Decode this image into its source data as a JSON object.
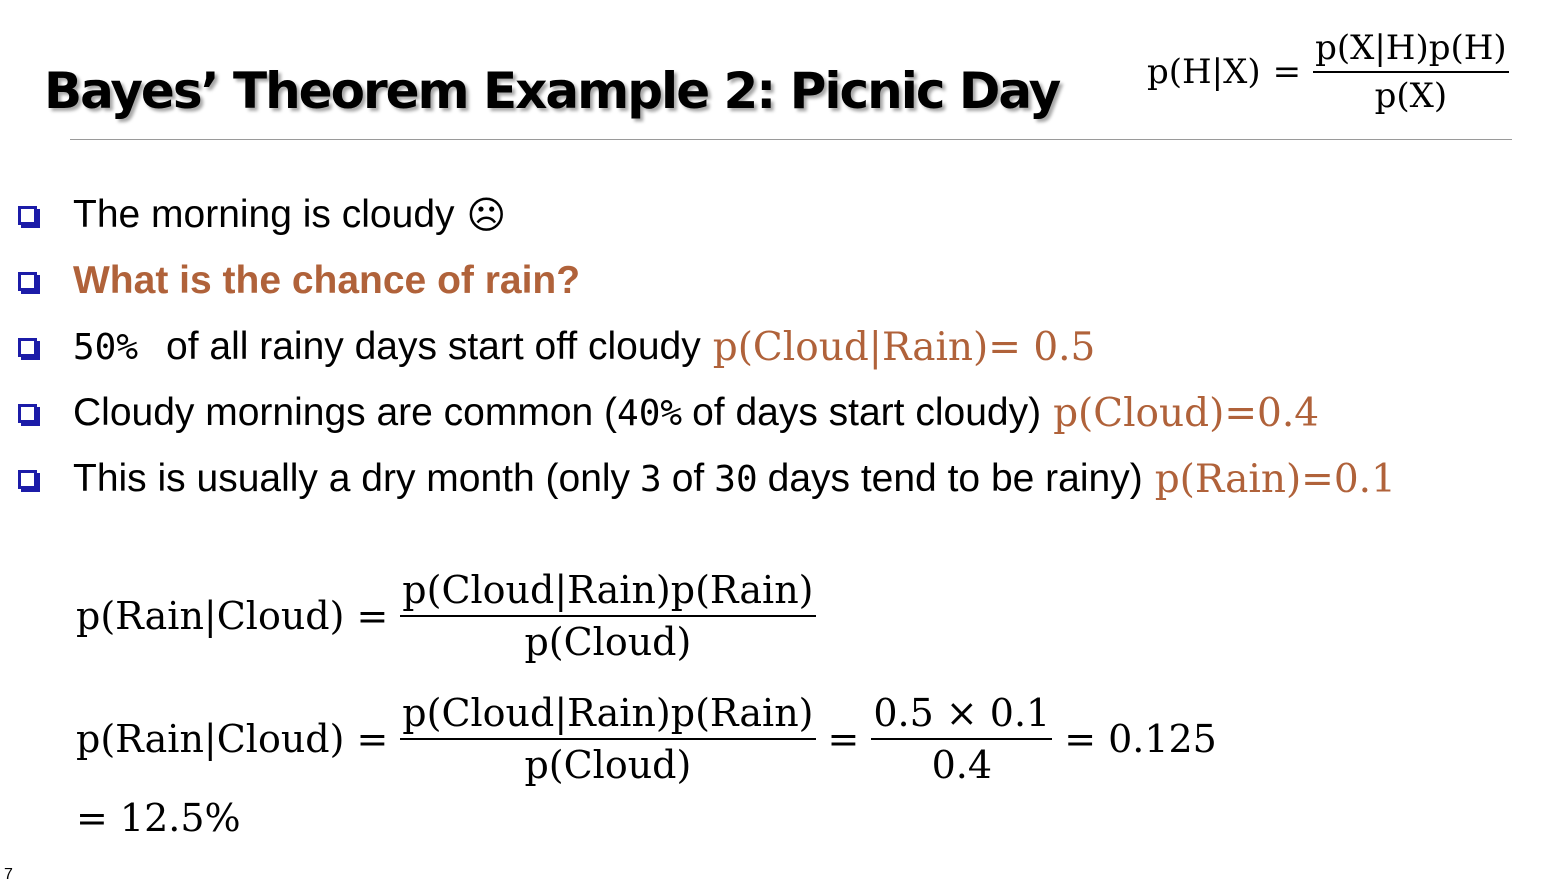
{
  "slide": {
    "title": "Bayes’ Theorem Example 2: Picnic Day",
    "page_number": "7"
  },
  "formula": {
    "lhs": "p(H|X)",
    "equals": "=",
    "numerator": "p(X|H)p(H)",
    "denominator": "p(X)"
  },
  "bullets": [
    {
      "text": "The morning is cloudy",
      "emoji": "☹"
    },
    {
      "text": "What is the chance of rain?"
    },
    {
      "num": "50%",
      "text": "of all rainy days start off cloudy",
      "prob": "p(Cloud|Rain)= 0.5"
    },
    {
      "text_a": "Cloudy mornings are common (",
      "num": "40%",
      "text_b": "of days start cloudy)",
      "prob": "p(Cloud)=0.4"
    },
    {
      "text_a": "This is usually a dry month (only",
      "num_a": "3",
      "text_b": "of",
      "num_b": "30",
      "text_c": "days tend to be rainy)",
      "prob": "p(Rain)=0.1"
    }
  ],
  "calculation": {
    "lhs": "p(Rain|Cloud)",
    "equals": "=",
    "fraction_num": "p(Cloud|Rain)p(Rain)",
    "fraction_den": "p(Cloud)",
    "numeric_num": "0.5 × 0.1",
    "numeric_den": "0.4",
    "result": "0.125",
    "percent": "= 12.5%"
  },
  "colors": {
    "accent": "#b0623a",
    "bullet_box": "#1c1ca8",
    "rule": "#9a9a9a"
  }
}
